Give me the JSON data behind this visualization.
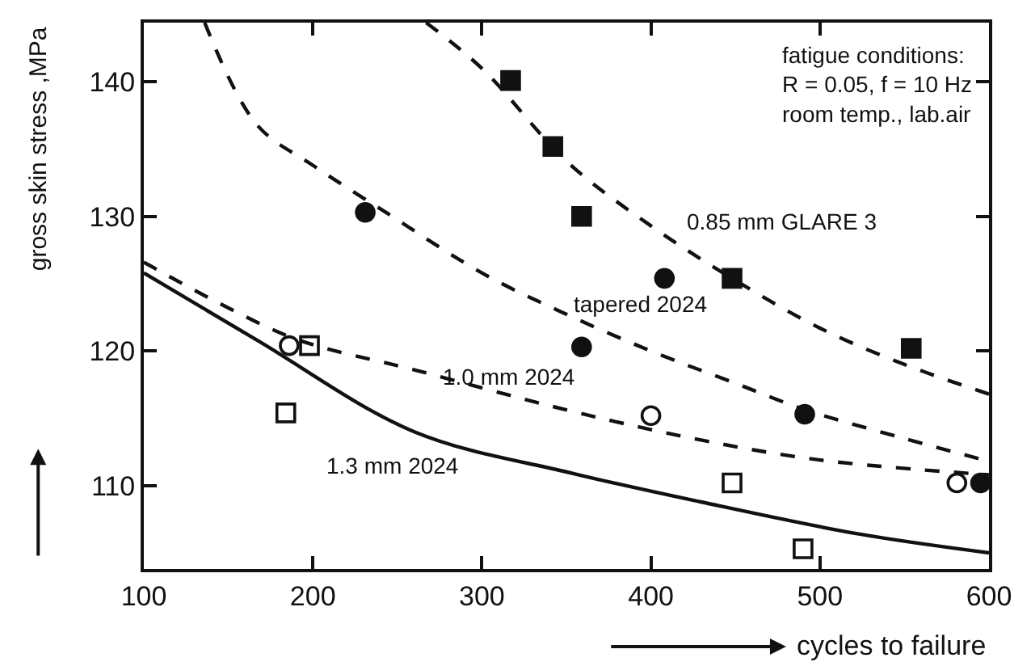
{
  "chart_data": {
    "type": "scatter",
    "xlabel": "cycles to failure",
    "ylabel": "gross skin stress ,MPa",
    "xlim": [
      100,
      600
    ],
    "xticks": [
      100,
      200,
      300,
      400,
      500,
      600
    ],
    "ylim": [
      103.8,
      144.4
    ],
    "yticks": [
      110,
      120,
      130,
      140
    ],
    "series": [
      {
        "marker": "square",
        "color": "#111111",
        "x": [
          317,
          342,
          359,
          448,
          554
        ],
        "values": [
          140.1,
          135.2,
          130,
          125.4,
          120.2
        ]
      },
      {
        "marker": "circle",
        "color": "#111111",
        "x": [
          231,
          359,
          408,
          491,
          595
        ],
        "values": [
          130.3,
          120.3,
          125.4,
          115.3,
          110.2
        ]
      },
      {
        "marker": "circle-open",
        "color": "#111111",
        "x": [
          186,
          400,
          581
        ],
        "values": [
          120.4,
          115.2,
          110.2
        ]
      },
      {
        "marker": "square-open",
        "color": "#111111",
        "x": [
          198,
          184,
          448,
          490
        ],
        "values": [
          120.4,
          115.4,
          110.2,
          105.3
        ]
      },
      {
        "type": "line",
        "line_style": "dashed",
        "color": "#111111",
        "x": [
          267,
          300,
          351,
          400,
          448,
          500,
          550,
          600
        ],
        "values": [
          144.4,
          141.0,
          134,
          129.3,
          125.4,
          121.7,
          119,
          116.8
        ]
      },
      {
        "type": "line",
        "line_style": "dashed",
        "color": "#111111",
        "x": [
          136,
          167,
          200,
          242,
          300,
          347,
          400,
          450,
          492,
          550,
          600
        ],
        "values": [
          144.4,
          136.8,
          133.8,
          130.4,
          125.8,
          122.9,
          120.0,
          117.6,
          115.6,
          113.5,
          111.8
        ]
      },
      {
        "type": "line",
        "line_style": "dashed",
        "color": "#111111",
        "x": [
          100,
          150,
          192,
          260,
          354,
          429,
          500,
          600
        ],
        "values": [
          126.6,
          123.2,
          120.8,
          118.6,
          115.5,
          113.4,
          111.9,
          110.8
        ]
      },
      {
        "type": "line",
        "line_style": "solid",
        "color": "#111111",
        "x": [
          100,
          167,
          260,
          354,
          429,
          523,
          600
        ],
        "values": [
          125.8,
          120.8,
          114,
          110.9,
          108.8,
          106.4,
          105.0
        ]
      }
    ],
    "annotations": [
      "0.85 mm GLARE 3",
      "tapered 2024",
      "1.0 mm 2024",
      "1.3 mm 2024",
      "fatigue conditions:\nR = 0.05, f = 10 Hz\nroom temp., lab.air"
    ]
  }
}
